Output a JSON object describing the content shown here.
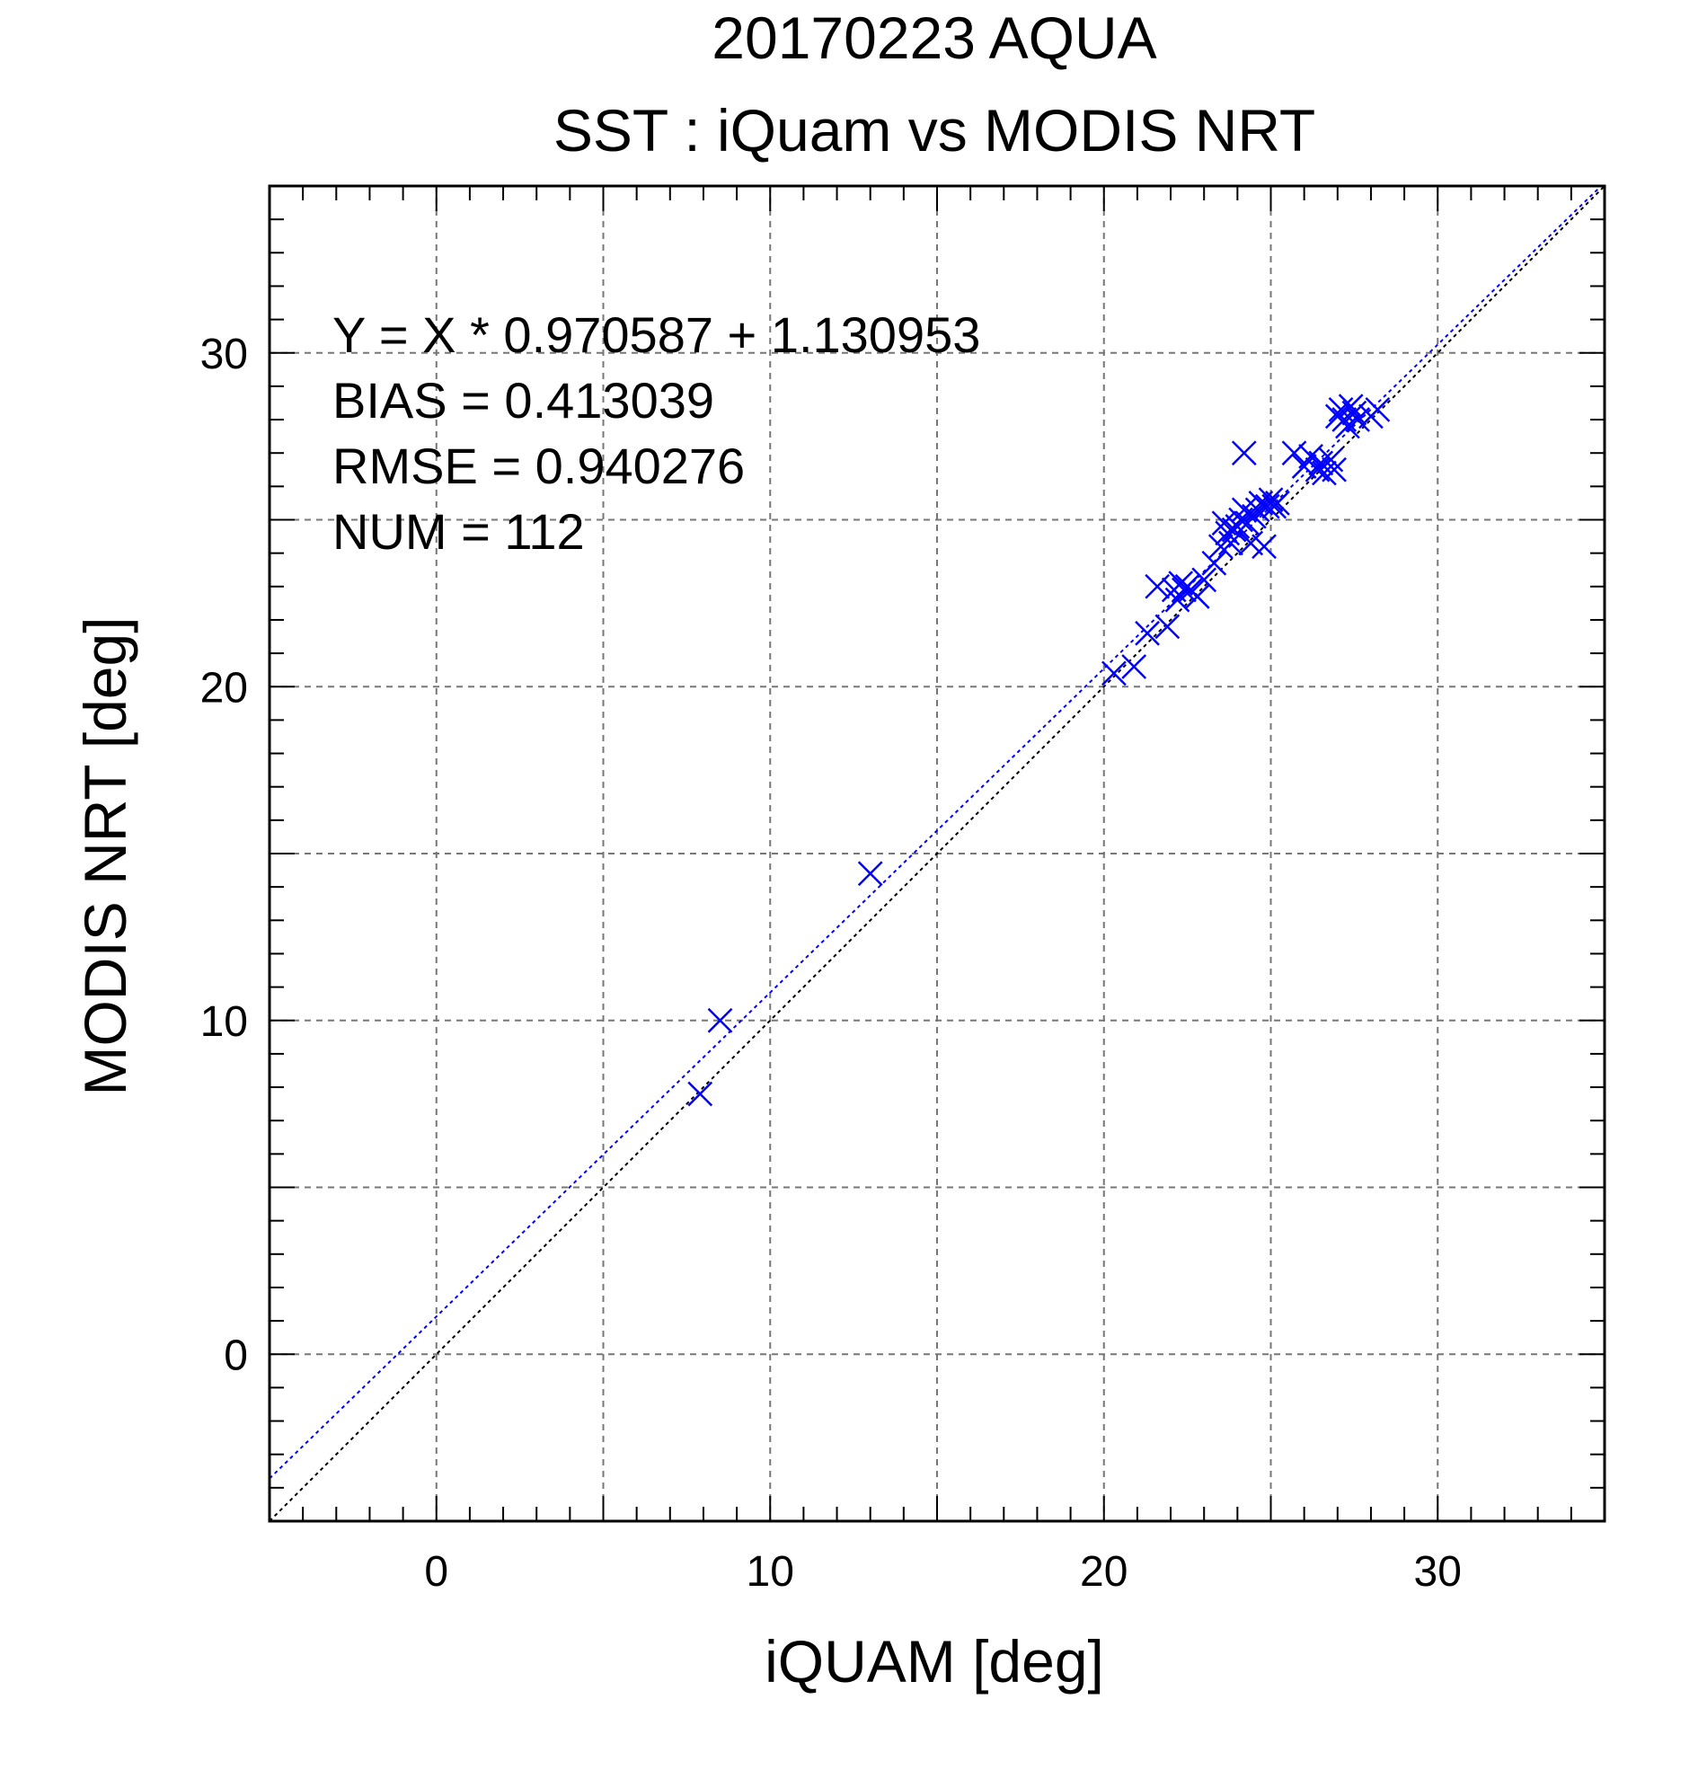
{
  "chart_data": {
    "type": "scatter",
    "title": "20170223 AQUA",
    "subtitle": "SST : iQuam vs MODIS NRT",
    "xlabel": "iQUAM [deg]",
    "ylabel": "MODIS NRT [deg]",
    "xlim": [
      -5,
      35
    ],
    "ylim": [
      -5,
      35
    ],
    "x_ticks": [
      0,
      10,
      20,
      30
    ],
    "y_ticks": [
      0,
      10,
      20,
      30
    ],
    "x_tick_labels": [
      "0",
      "10",
      "20",
      "30"
    ],
    "y_tick_labels": [
      "0",
      "10",
      "20",
      "30"
    ],
    "grid": true,
    "grid_step": 5,
    "annotations": [
      "Y = X * 0.970587 + 1.130953",
      "BIAS = 0.413039",
      "RMSE = 0.940276",
      "NUM = 112"
    ],
    "fit_line": {
      "slope": 0.970587,
      "intercept": 1.130953,
      "color": "#0000ff"
    },
    "identity_line": {
      "color": "#000000"
    },
    "marker": "x",
    "marker_color": "#0000ff",
    "series": [
      {
        "x": [
          7.9,
          8.5,
          13.0,
          20.3,
          20.9,
          21.3,
          21.6,
          21.9,
          22.1,
          22.2,
          22.3,
          22.4,
          22.5,
          22.6,
          22.8,
          23.0,
          23.3,
          23.5,
          23.6,
          23.7,
          23.8,
          23.9,
          24.0,
          24.1,
          24.2,
          24.3,
          24.4,
          24.5,
          24.6,
          24.7,
          24.8,
          24.9,
          25.0,
          25.1,
          25.2,
          24.2,
          25.7,
          26.0,
          26.2,
          26.4,
          26.5,
          26.6,
          26.8,
          26.9,
          27.0,
          27.1,
          27.2,
          27.3,
          27.4,
          27.5,
          27.6,
          28.0,
          28.2
        ],
        "y": [
          7.8,
          10.0,
          14.4,
          20.4,
          20.6,
          21.6,
          23.0,
          21.8,
          22.9,
          22.6,
          23.1,
          22.9,
          23.0,
          22.9,
          22.7,
          23.2,
          23.7,
          24.2,
          24.9,
          24.6,
          24.3,
          24.7,
          24.8,
          25.0,
          25.3,
          24.9,
          24.3,
          25.1,
          25.3,
          25.5,
          24.2,
          25.4,
          25.6,
          25.4,
          25.5,
          27.0,
          27.0,
          26.6,
          26.9,
          26.5,
          26.7,
          26.4,
          26.8,
          26.5,
          28.1,
          28.3,
          28.0,
          27.8,
          28.4,
          28.2,
          28.0,
          28.1,
          28.3
        ]
      }
    ]
  }
}
